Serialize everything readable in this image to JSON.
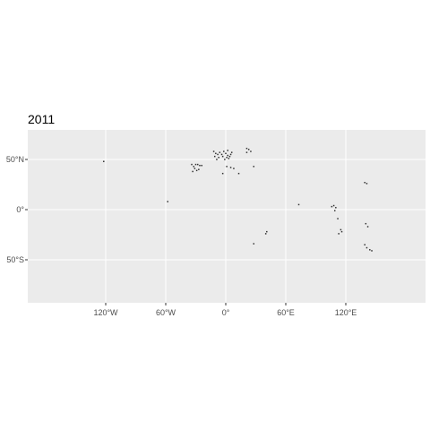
{
  "chart_data": {
    "type": "scatter",
    "title": "2011",
    "xlabel": "",
    "ylabel": "",
    "xlim": [
      -195,
      185
    ],
    "ylim": [
      -90,
      80
    ],
    "grid": true,
    "background": "#ebebeb",
    "grid_color": "#ffffff",
    "point_color": "#333333",
    "x_ticks": [
      {
        "value": -120,
        "label": "120°W"
      },
      {
        "value": -60,
        "label": "60°W"
      },
      {
        "value": 0,
        "label": "0°"
      },
      {
        "value": 60,
        "label": "60°E"
      },
      {
        "value": 120,
        "label": "120°E"
      }
    ],
    "y_ticks": [
      {
        "value": 50,
        "label": "50°N"
      },
      {
        "value": 0,
        "label": "0°"
      },
      {
        "value": -50,
        "label": "50°S"
      }
    ],
    "points": [
      {
        "lon": -122,
        "lat": 48
      },
      {
        "lon": -58,
        "lat": 8
      },
      {
        "lon": -34,
        "lat": 45
      },
      {
        "lon": -32,
        "lat": 43
      },
      {
        "lon": -30,
        "lat": 45
      },
      {
        "lon": -28,
        "lat": 45
      },
      {
        "lon": -26,
        "lat": 44
      },
      {
        "lon": -24,
        "lat": 44
      },
      {
        "lon": -31,
        "lat": 41
      },
      {
        "lon": -33,
        "lat": 38
      },
      {
        "lon": -29,
        "lat": 39
      },
      {
        "lon": -27,
        "lat": 40
      },
      {
        "lon": -12,
        "lat": 58
      },
      {
        "lon": -10,
        "lat": 56
      },
      {
        "lon": -11,
        "lat": 53
      },
      {
        "lon": -8,
        "lat": 55
      },
      {
        "lon": -6,
        "lat": 57
      },
      {
        "lon": -4,
        "lat": 55
      },
      {
        "lon": -3,
        "lat": 53
      },
      {
        "lon": -2,
        "lat": 58
      },
      {
        "lon": -1,
        "lat": 50
      },
      {
        "lon": 0,
        "lat": 56
      },
      {
        "lon": 1,
        "lat": 52
      },
      {
        "lon": 2,
        "lat": 59
      },
      {
        "lon": 2,
        "lat": 54
      },
      {
        "lon": 3,
        "lat": 51
      },
      {
        "lon": 4,
        "lat": 53
      },
      {
        "lon": 5,
        "lat": 55
      },
      {
        "lon": 6,
        "lat": 57
      },
      {
        "lon": -7,
        "lat": 52
      },
      {
        "lon": -9,
        "lat": 50
      },
      {
        "lon": 1,
        "lat": 43
      },
      {
        "lon": 5,
        "lat": 42
      },
      {
        "lon": 8,
        "lat": 41
      },
      {
        "lon": 13,
        "lat": 36
      },
      {
        "lon": -3,
        "lat": 36
      },
      {
        "lon": 21,
        "lat": 61
      },
      {
        "lon": 23,
        "lat": 60
      },
      {
        "lon": 25,
        "lat": 58
      },
      {
        "lon": 21,
        "lat": 57
      },
      {
        "lon": 28,
        "lat": 43
      },
      {
        "lon": 41,
        "lat": -22
      },
      {
        "lon": 40,
        "lat": -24
      },
      {
        "lon": 28,
        "lat": -34
      },
      {
        "lon": 73,
        "lat": 5
      },
      {
        "lon": 106,
        "lat": 3
      },
      {
        "lon": 108,
        "lat": 4
      },
      {
        "lon": 110,
        "lat": 2
      },
      {
        "lon": 109,
        "lat": -1
      },
      {
        "lon": 112,
        "lat": -9
      },
      {
        "lon": 115,
        "lat": -20
      },
      {
        "lon": 113,
        "lat": -24
      },
      {
        "lon": 116,
        "lat": -22
      },
      {
        "lon": 139,
        "lat": 27
      },
      {
        "lon": 141,
        "lat": 26
      },
      {
        "lon": 140,
        "lat": -14
      },
      {
        "lon": 142,
        "lat": -17
      },
      {
        "lon": 139,
        "lat": -35
      },
      {
        "lon": 141,
        "lat": -38
      },
      {
        "lon": 144,
        "lat": -40
      },
      {
        "lon": 146,
        "lat": -41
      }
    ]
  }
}
